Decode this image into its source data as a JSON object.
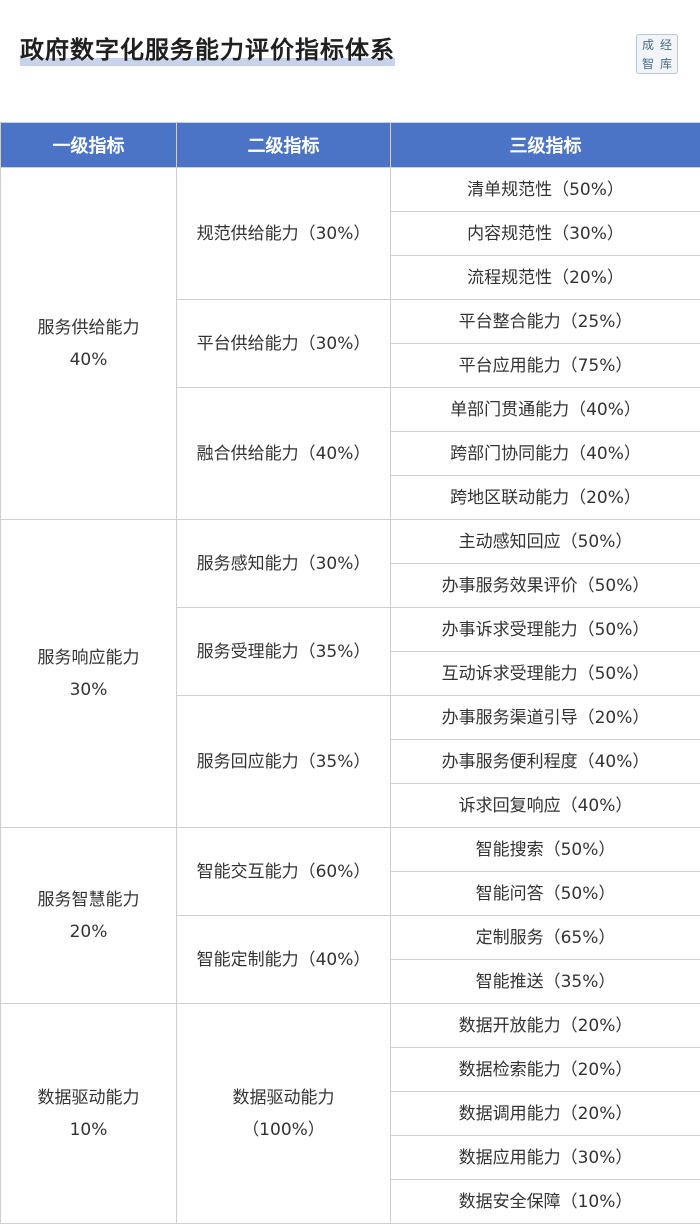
{
  "title": "政府数字化服务能力评价指标体系",
  "logo_text": [
    "成",
    "经",
    "智",
    "库"
  ],
  "headers": [
    "一级指标",
    "二级指标",
    "三级指标"
  ],
  "groups": [
    {
      "label": "服务供给能力\n40%",
      "subs": [
        {
          "label": "规范供给能力（30%）",
          "items": [
            "清单规范性（50%）",
            "内容规范性（30%）",
            "流程规范性（20%）"
          ]
        },
        {
          "label": "平台供给能力（30%）",
          "items": [
            "平台整合能力（25%）",
            "平台应用能力（75%）"
          ]
        },
        {
          "label": "融合供给能力（40%）",
          "items": [
            "单部门贯通能力（40%）",
            "跨部门协同能力（40%）",
            "跨地区联动能力（20%）"
          ]
        }
      ]
    },
    {
      "label": "服务响应能力\n30%",
      "subs": [
        {
          "label": "服务感知能力（30%）",
          "items": [
            "主动感知回应（50%）",
            "办事服务效果评价（50%）"
          ]
        },
        {
          "label": "服务受理能力（35%）",
          "items": [
            "办事诉求受理能力（50%）",
            "互动诉求受理能力（50%）"
          ]
        },
        {
          "label": "服务回应能力（35%）",
          "items": [
            "办事服务渠道引导（20%）",
            "办事服务便利程度（40%）",
            "诉求回复响应（40%）"
          ]
        }
      ]
    },
    {
      "label": "服务智慧能力\n20%",
      "subs": [
        {
          "label": "智能交互能力（60%）",
          "items": [
            "智能搜索（50%）",
            "智能问答（50%）"
          ]
        },
        {
          "label": "智能定制能力（40%）",
          "items": [
            "定制服务（65%）",
            "智能推送（35%）"
          ]
        }
      ]
    },
    {
      "label": "数据驱动能力\n10%",
      "subs": [
        {
          "label": "数据驱动能力\n（100%）",
          "items": [
            "数据开放能力（20%）",
            "数据检索能力（20%）",
            "数据调用能力（20%）",
            "数据应用能力（30%）",
            "数据安全保障（10%）"
          ]
        }
      ]
    }
  ]
}
